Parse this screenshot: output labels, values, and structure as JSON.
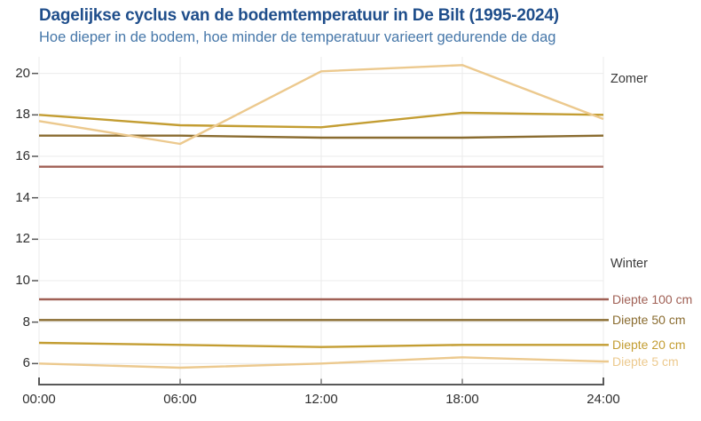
{
  "colors": {
    "title": "#1f4e8b",
    "subtitle": "#4677a9",
    "grid": "#ebebeb",
    "axis": "#595959",
    "minor_tick": "#707070",
    "tick_label": "#2f2f2f",
    "annotation": "#3a3a3a",
    "depth_5cm": "#ecc98e",
    "depth_20cm": "#c39d32",
    "depth_50cm": "#8a6c30",
    "depth_100cm": "#a06055"
  },
  "chart_data": {
    "type": "line",
    "title": "Dagelijkse cyclus van de bodemtemperatuur in De Bilt (1995-2024)",
    "subtitle": "Hoe dieper in de bodem, hoe minder de temperatuur varieert gedurende de dag",
    "xlabel": "",
    "ylabel": "",
    "xlim": [
      0,
      24
    ],
    "ylim": [
      4.9,
      20.9
    ],
    "grid": true,
    "legend_position": "right-inline-labels",
    "x": [
      0,
      6,
      12,
      18,
      24
    ],
    "x_tick_labels": [
      "00:00",
      "06:00",
      "12:00",
      "18:00",
      "24:00"
    ],
    "y_ticks": [
      6,
      8,
      10,
      12,
      14,
      16,
      18,
      20
    ],
    "y_tick_labels": [
      "6",
      "8",
      "10",
      "12",
      "14",
      "16",
      "18",
      "20"
    ],
    "annotations": [
      {
        "text": "Zomer",
        "x": 24.3,
        "y": 19.75
      },
      {
        "text": "Winter",
        "x": 24.3,
        "y": 10.8
      }
    ],
    "series": [
      {
        "name": "Zomer Diepte 20 cm",
        "season": "Zomer",
        "depth": "20 cm",
        "color": "#c39d32",
        "values": [
          18.0,
          17.5,
          17.4,
          18.1,
          18.0
        ]
      },
      {
        "name": "Zomer Diepte 50 cm",
        "season": "Zomer",
        "depth": "50 cm",
        "color": "#8a6c30",
        "values": [
          17.0,
          17.0,
          16.9,
          16.9,
          17.0
        ]
      },
      {
        "name": "Zomer Diepte 100 cm",
        "season": "Zomer",
        "depth": "100 cm",
        "color": "#a06055",
        "values": [
          15.5,
          15.5,
          15.5,
          15.5,
          15.5
        ]
      },
      {
        "name": "Zomer Diepte 5 cm",
        "season": "Zomer",
        "depth": "5 cm",
        "color": "#ecc98e",
        "values": [
          17.7,
          16.6,
          20.1,
          20.4,
          17.8
        ]
      },
      {
        "name": "Winter Diepte 100 cm",
        "season": "Winter",
        "depth": "100 cm",
        "color": "#a06055",
        "label": "Diepte 100 cm",
        "values": [
          9.1,
          9.1,
          9.1,
          9.1,
          9.1
        ]
      },
      {
        "name": "Winter Diepte 50 cm",
        "season": "Winter",
        "depth": "50 cm",
        "color": "#8a6c30",
        "label": "Diepte 50 cm",
        "values": [
          8.1,
          8.1,
          8.1,
          8.1,
          8.1
        ]
      },
      {
        "name": "Winter Diepte 20 cm",
        "season": "Winter",
        "depth": "20 cm",
        "color": "#c39d32",
        "label": "Diepte 20 cm",
        "values": [
          7.0,
          6.9,
          6.8,
          6.9,
          6.9
        ]
      },
      {
        "name": "Winter Diepte 5 cm",
        "season": "Winter",
        "depth": "5 cm",
        "color": "#ecc98e",
        "label": "Diepte 5 cm",
        "values": [
          6.0,
          5.8,
          6.0,
          6.3,
          6.1
        ]
      }
    ]
  }
}
